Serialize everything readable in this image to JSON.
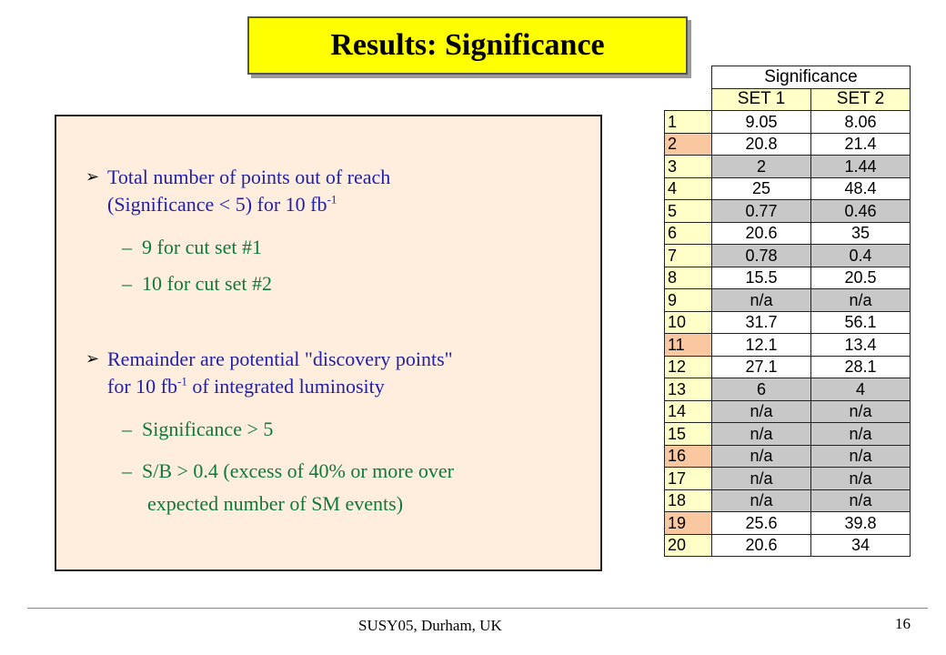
{
  "title": "Results: Significance",
  "bullets": {
    "b1_line1": "Total number of points out of reach",
    "b1_line2_pre": "(Significance < 5) for 10 fb",
    "b1_line2_sup": "-1",
    "sub1": "9 for cut set #1",
    "sub2": "10 for cut set #2",
    "b2_line1": "Remainder are potential \"discovery points\"",
    "b2_line2_pre": "for 10 fb",
    "b2_line2_sup": "-1",
    "b2_line2_post": " of integrated luminosity",
    "sub3": "Significance > 5",
    "sub4_line1": "S/B > 0.4 (excess of 40% or more over",
    "sub4_line2": "expected number of SM events)",
    "dash": "–",
    "arrow": "➢"
  },
  "table": {
    "header": "Significance",
    "set1": "SET 1",
    "set2": "SET 2",
    "rows": [
      {
        "n": "1",
        "s1": "9.05",
        "s2": "8.06",
        "idx": "yellow",
        "cells": "white"
      },
      {
        "n": "2",
        "s1": "20.8",
        "s2": "21.4",
        "idx": "orange",
        "cells": "white"
      },
      {
        "n": "3",
        "s1": "2",
        "s2": "1.44",
        "idx": "yellow",
        "cells": "gray"
      },
      {
        "n": "4",
        "s1": "25",
        "s2": "48.4",
        "idx": "yellow",
        "cells": "white"
      },
      {
        "n": "5",
        "s1": "0.77",
        "s2": "0.46",
        "idx": "yellow",
        "cells": "gray"
      },
      {
        "n": "6",
        "s1": "20.6",
        "s2": "35",
        "idx": "yellow",
        "cells": "white"
      },
      {
        "n": "7",
        "s1": "0.78",
        "s2": "0.4",
        "idx": "yellow",
        "cells": "gray"
      },
      {
        "n": "8",
        "s1": "15.5",
        "s2": "20.5",
        "idx": "yellow",
        "cells": "white"
      },
      {
        "n": "9",
        "s1": "n/a",
        "s2": "n/a",
        "idx": "yellow",
        "cells": "gray"
      },
      {
        "n": "10",
        "s1": "31.7",
        "s2": "56.1",
        "idx": "yellow",
        "cells": "white"
      },
      {
        "n": "11",
        "s1": "12.1",
        "s2": "13.4",
        "idx": "orange",
        "cells": "white"
      },
      {
        "n": "12",
        "s1": "27.1",
        "s2": "28.1",
        "idx": "yellow",
        "cells": "white"
      },
      {
        "n": "13",
        "s1": "6",
        "s2": "4",
        "idx": "yellow",
        "cells": "gray"
      },
      {
        "n": "14",
        "s1": "n/a",
        "s2": "n/a",
        "idx": "yellow",
        "cells": "gray"
      },
      {
        "n": "15",
        "s1": "n/a",
        "s2": "n/a",
        "idx": "yellow",
        "cells": "gray"
      },
      {
        "n": "16",
        "s1": "n/a",
        "s2": "n/a",
        "idx": "orange",
        "cells": "gray"
      },
      {
        "n": "17",
        "s1": "n/a",
        "s2": "n/a",
        "idx": "yellow",
        "cells": "gray"
      },
      {
        "n": "18",
        "s1": "n/a",
        "s2": "n/a",
        "idx": "yellow",
        "cells": "gray"
      },
      {
        "n": "19",
        "s1": "25.6",
        "s2": "39.8",
        "idx": "orange",
        "cells": "white"
      },
      {
        "n": "20",
        "s1": "20.6",
        "s2": "34",
        "idx": "yellow",
        "cells": "white"
      }
    ]
  },
  "footer": {
    "text": "SUSY05, Durham, UK",
    "page": "16"
  },
  "colors": {
    "title_bg": "#ffff00",
    "panel_bg": "#ffeedd",
    "bullet_text": "#1f1fa8",
    "sub_text": "#0d7a3a"
  }
}
